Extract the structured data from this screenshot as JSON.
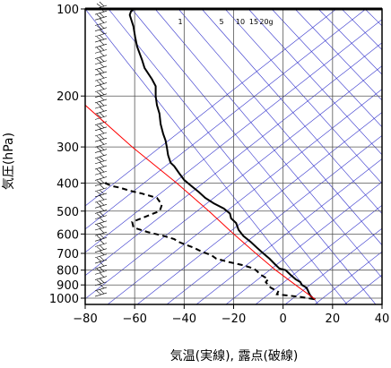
{
  "chart_data": {
    "type": "line",
    "title": "",
    "xlabel": "気温(実線), 露点(破線)",
    "ylabel": "気圧(hPa)",
    "xlim": [
      -80,
      40
    ],
    "ylim": [
      1050,
      100
    ],
    "yscale": "log",
    "x_ticks": [
      "−80",
      "−60",
      "−40",
      "−20",
      "0",
      "20",
      "40"
    ],
    "y_ticks": [
      "100",
      "200",
      "300",
      "400",
      "500",
      "600",
      "700",
      "800",
      "900",
      "1000"
    ],
    "x_tick_values": [
      -80,
      -60,
      -40,
      -20,
      0,
      20,
      40
    ],
    "y_tick_values": [
      100,
      200,
      300,
      400,
      500,
      600,
      700,
      800,
      900,
      1000
    ],
    "mixing_ratio_labels": [
      "1",
      "5",
      "10",
      "15",
      "20g"
    ],
    "mixing_ratio_values": [
      1,
      5,
      10,
      15,
      20
    ],
    "grid": true,
    "colors": {
      "temperature": "#000000",
      "dewpoint": "#000000",
      "parcel": "#ff0000",
      "auxiliary_lines": "#3333cc",
      "grid": "#555555"
    },
    "series": [
      {
        "style": "solid",
        "points": [
          [
            100,
            -60.2
          ],
          [
            102,
            -61.5
          ],
          [
            105,
            -62
          ],
          [
            115,
            -60.5
          ],
          [
            125,
            -59.8
          ],
          [
            135,
            -59
          ],
          [
            150,
            -57
          ],
          [
            160,
            -56
          ],
          [
            175,
            -53
          ],
          [
            185,
            -51.5
          ],
          [
            200,
            -51.5
          ],
          [
            215,
            -51
          ],
          [
            230,
            -50
          ],
          [
            250,
            -49.5
          ],
          [
            270,
            -48.5
          ],
          [
            285,
            -47.5
          ],
          [
            300,
            -47
          ],
          [
            320,
            -46.5
          ],
          [
            340,
            -45.5
          ],
          [
            350,
            -44
          ],
          [
            370,
            -42
          ],
          [
            390,
            -40
          ],
          [
            410,
            -37
          ],
          [
            430,
            -34
          ],
          [
            450,
            -31.5
          ],
          [
            470,
            -28
          ],
          [
            490,
            -24
          ],
          [
            510,
            -21.5
          ],
          [
            530,
            -21
          ],
          [
            550,
            -19
          ],
          [
            580,
            -18
          ],
          [
            610,
            -16
          ],
          [
            640,
            -13
          ],
          [
            670,
            -10.5
          ],
          [
            700,
            -8
          ],
          [
            730,
            -5.5
          ],
          [
            760,
            -3.5
          ],
          [
            790,
            -1.5
          ],
          [
            800,
            1
          ],
          [
            830,
            3
          ],
          [
            860,
            5
          ],
          [
            880,
            7
          ],
          [
            900,
            7.5
          ],
          [
            920,
            9.5
          ],
          [
            940,
            10
          ],
          [
            960,
            10.5
          ],
          [
            980,
            11
          ],
          [
            1000,
            12
          ],
          [
            1010,
            13
          ]
        ]
      },
      {
        "style": "dashed",
        "points": [
          [
            400,
            -72
          ],
          [
            410,
            -69
          ],
          [
            415,
            -66
          ],
          [
            425,
            -62
          ],
          [
            435,
            -57
          ],
          [
            450,
            -51
          ],
          [
            475,
            -49
          ],
          [
            490,
            -49.5
          ],
          [
            500,
            -50
          ],
          [
            520,
            -55
          ],
          [
            545,
            -61
          ],
          [
            570,
            -60.5
          ],
          [
            590,
            -55
          ],
          [
            610,
            -48
          ],
          [
            625,
            -44
          ],
          [
            640,
            -42
          ],
          [
            650,
            -40
          ],
          [
            660,
            -38
          ],
          [
            670,
            -36
          ],
          [
            690,
            -33
          ],
          [
            710,
            -29
          ],
          [
            730,
            -27
          ],
          [
            750,
            -22
          ],
          [
            770,
            -16
          ],
          [
            790,
            -12
          ],
          [
            800,
            -11
          ],
          [
            830,
            -9
          ],
          [
            860,
            -6
          ],
          [
            880,
            -7
          ],
          [
            900,
            -6
          ],
          [
            920,
            -5
          ],
          [
            950,
            -2
          ],
          [
            970,
            -2.5
          ],
          [
            990,
            7
          ],
          [
            1000,
            10
          ],
          [
            1010,
            13
          ]
        ]
      },
      {
        "style": "solid",
        "points": [
          [
            215,
            -80
          ],
          [
            300,
            -61
          ],
          [
            400,
            -43
          ],
          [
            500,
            -30
          ],
          [
            600,
            -20
          ],
          [
            700,
            -11
          ],
          [
            800,
            -3
          ],
          [
            900,
            5
          ],
          [
            1010,
            13
          ]
        ]
      }
    ]
  }
}
